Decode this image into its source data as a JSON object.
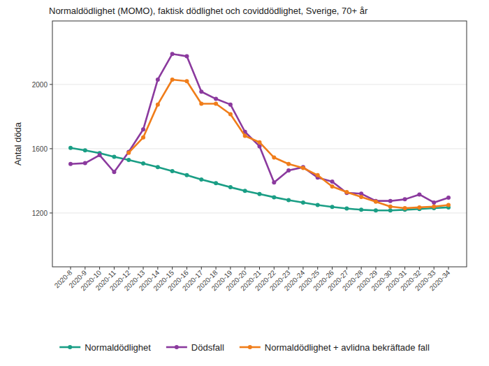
{
  "chart_data": {
    "type": "line",
    "title": "Normaldödlighet (MOMO), faktisk dödlighet och coviddödlighet, Sverige, 70+ år",
    "y_label": "Antal döda",
    "categories": [
      "2020-8",
      "2020-9",
      "2020-10",
      "2020-11",
      "2020-12",
      "2020-13",
      "2020-14",
      "2020-15",
      "2020-16",
      "2020-17",
      "2020-18",
      "2020-19",
      "2020-20",
      "2020-21",
      "2020-22",
      "2020-23",
      "2020-24",
      "2020-25",
      "2020-26",
      "2020-27",
      "2020-28",
      "2020-29",
      "2020-30",
      "2020-31",
      "2020-32",
      "2020-33",
      "2020-34"
    ],
    "series": [
      {
        "name": "Normaldödlighet",
        "color": "#1a9e85",
        "marker": "circle",
        "values": [
          1605,
          1590,
          1572,
          1550,
          1530,
          1508,
          1485,
          1460,
          1435,
          1408,
          1385,
          1360,
          1338,
          1318,
          1298,
          1280,
          1265,
          1250,
          1238,
          1228,
          1220,
          1216,
          1216,
          1220,
          1225,
          1230,
          1235
        ]
      },
      {
        "name": "Dödsfall",
        "color": "#8b3a9e",
        "marker": "circle",
        "values": [
          1505,
          1510,
          1560,
          1455,
          1580,
          1720,
          2030,
          2190,
          2175,
          1955,
          1910,
          1875,
          1705,
          1615,
          1390,
          1465,
          1485,
          1420,
          1395,
          1325,
          1320,
          1275,
          1275,
          1285,
          1315,
          1265,
          1295
        ]
      },
      {
        "name": "Normaldödlighet + avlidna bekräftade fall",
        "color": "#f07d1a",
        "marker": "circle",
        "values": [
          null,
          null,
          null,
          null,
          1575,
          1670,
          1875,
          2030,
          2020,
          1880,
          1880,
          1815,
          1680,
          1640,
          1545,
          1505,
          1480,
          1435,
          1365,
          1330,
          1300,
          1270,
          1240,
          1230,
          1235,
          1240,
          1250
        ]
      }
    ],
    "ylim": [
      865,
      2395
    ],
    "yticks": [
      1200,
      1600,
      2000
    ],
    "grid": true,
    "legend": "bottom"
  }
}
